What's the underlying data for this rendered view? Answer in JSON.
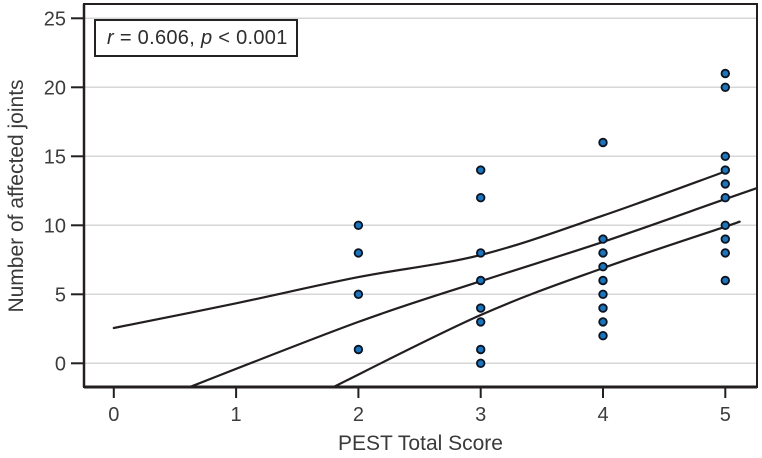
{
  "figure": {
    "annotation": {
      "parts": [
        {
          "text": "r",
          "italic": true
        },
        {
          "text": " = 0.606, ",
          "italic": false
        },
        {
          "text": "p",
          "italic": true
        },
        {
          "text": " < 0.001",
          "italic": false
        }
      ]
    }
  },
  "chart_data": {
    "type": "scatter",
    "title": "",
    "xlabel": "PEST Total Score",
    "ylabel": "Number of affected joints",
    "annotation": "r = 0.606, p < 0.001",
    "xlim": [
      -0.24,
      5.26
    ],
    "ylim": [
      -1.8,
      26.1
    ],
    "xticks": [
      0,
      1,
      2,
      3,
      4,
      5
    ],
    "yticks": [
      0,
      5,
      10,
      15,
      20,
      25
    ],
    "grid": "horizontal",
    "legend": "none",
    "points": [
      [
        2,
        1
      ],
      [
        2,
        5
      ],
      [
        2,
        8
      ],
      [
        2,
        10
      ],
      [
        3,
        0
      ],
      [
        3,
        1
      ],
      [
        3,
        3
      ],
      [
        3,
        4
      ],
      [
        3,
        6
      ],
      [
        3,
        8
      ],
      [
        3,
        12
      ],
      [
        3,
        14
      ],
      [
        4,
        2
      ],
      [
        4,
        3
      ],
      [
        4,
        4
      ],
      [
        4,
        5
      ],
      [
        4,
        6
      ],
      [
        4,
        7
      ],
      [
        4,
        8
      ],
      [
        4,
        9
      ],
      [
        4,
        16
      ],
      [
        5,
        6
      ],
      [
        5,
        8
      ],
      [
        5,
        9
      ],
      [
        5,
        10
      ],
      [
        5,
        12
      ],
      [
        5,
        13
      ],
      [
        5,
        14
      ],
      [
        5,
        15
      ],
      [
        5,
        20
      ],
      [
        5,
        21
      ]
    ],
    "curves": {
      "regression": [
        [
          0.6,
          -1.79
        ],
        [
          2,
          3.0
        ],
        [
          3,
          5.95
        ],
        [
          4,
          8.8
        ],
        [
          5,
          11.9
        ],
        [
          5.26,
          12.7
        ]
      ],
      "ci_upper": [
        [
          0,
          2.56
        ],
        [
          1,
          4.35
        ],
        [
          2,
          6.25
        ],
        [
          3,
          7.85
        ],
        [
          4,
          10.7
        ],
        [
          5,
          13.9
        ]
      ],
      "ci_lower": [
        [
          1.78,
          -1.79
        ],
        [
          3,
          3.5
        ],
        [
          4,
          6.9
        ],
        [
          5,
          9.9
        ],
        [
          5.11,
          10.25
        ]
      ]
    },
    "point_color": "#1b75bc",
    "point_stroke": "#0c1320",
    "line_color": "#231f20",
    "grid_color": "#d7d7d7",
    "text_color": "#3c3c3c"
  }
}
